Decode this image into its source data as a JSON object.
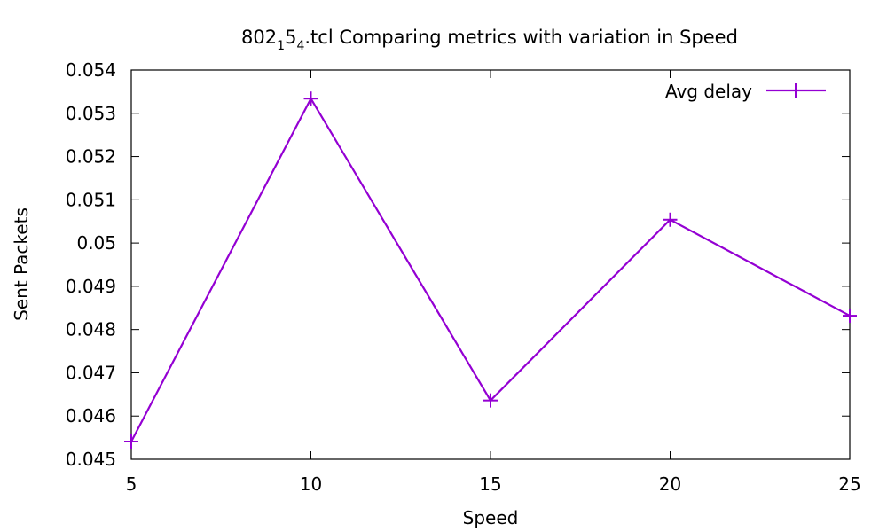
{
  "chart_data": {
    "type": "line",
    "title": {
      "main": "802",
      "sub1": "1",
      "mid": "5",
      "sub2": "4",
      "rest": ".tcl Comparing metrics with variation in Speed"
    },
    "xlabel": "Speed",
    "ylabel": "Sent Packets",
    "xlim": [
      5,
      25
    ],
    "ylim": [
      0.045,
      0.054
    ],
    "xticks": [
      5,
      10,
      15,
      20,
      25
    ],
    "xtick_labels": [
      "5",
      "10",
      "15",
      "20",
      "25"
    ],
    "yticks": [
      0.045,
      0.046,
      0.047,
      0.048,
      0.049,
      0.05,
      0.051,
      0.052,
      0.053,
      0.054
    ],
    "ytick_labels": [
      "0.045",
      "0.046",
      "0.047",
      "0.048",
      "0.049",
      "0.05",
      "0.051",
      "0.052",
      "0.053",
      "0.054"
    ],
    "grid": false,
    "legend_position": "top-right",
    "series": [
      {
        "name": "Avg delay",
        "color": "#9400d3",
        "marker": "plus",
        "x": [
          5,
          10,
          15,
          20,
          25
        ],
        "y": [
          0.04541,
          0.05334,
          0.04636,
          0.05054,
          0.04832
        ]
      }
    ]
  }
}
